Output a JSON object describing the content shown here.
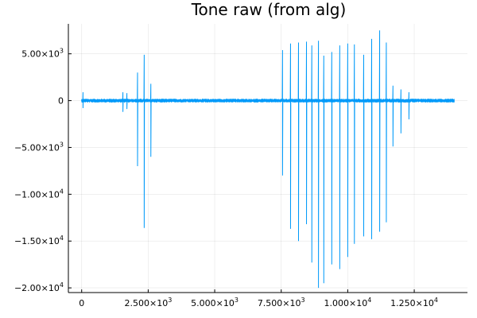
{
  "chart_data": {
    "type": "line",
    "title": "Tone raw (from alg)",
    "xlabel": "",
    "ylabel": "",
    "xlim": [
      -500,
      14500
    ],
    "ylim": [
      -20500,
      8200
    ],
    "grid": true,
    "legend": "none",
    "line_color": "#009af9",
    "x_ticks": [
      {
        "value": 0,
        "mantissa": "0",
        "exp": ""
      },
      {
        "value": 2500,
        "mantissa": "2.500×10",
        "exp": "3"
      },
      {
        "value": 5000,
        "mantissa": "5.000×10",
        "exp": "3"
      },
      {
        "value": 7500,
        "mantissa": "7.500×10",
        "exp": "3"
      },
      {
        "value": 10000,
        "mantissa": "1.000×10",
        "exp": "4"
      },
      {
        "value": 12500,
        "mantissa": "1.250×10",
        "exp": "4"
      }
    ],
    "y_ticks": [
      {
        "value": 5000,
        "mantissa": "5.00×10",
        "exp": "3"
      },
      {
        "value": 0,
        "mantissa": "0",
        "exp": ""
      },
      {
        "value": -5000,
        "mantissa": "−5.00×10",
        "exp": "3"
      },
      {
        "value": -10000,
        "mantissa": "−1.00×10",
        "exp": "4"
      },
      {
        "value": -15000,
        "mantissa": "−1.50×10",
        "exp": "4"
      },
      {
        "value": -20000,
        "mantissa": "−2.00×10",
        "exp": "4"
      }
    ],
    "series": [
      {
        "x_range": [
          0,
          14000
        ],
        "baseline_amplitude": 200,
        "spikes": [
          {
            "x": 50,
            "high": 900,
            "low": -800
          },
          {
            "x": 1550,
            "high": 900,
            "low": -1200
          },
          {
            "x": 1700,
            "high": 800,
            "low": -900
          },
          {
            "x": 2100,
            "high": 3000,
            "low": -7000
          },
          {
            "x": 2350,
            "high": 4900,
            "low": -13600
          },
          {
            "x": 2600,
            "high": 1800,
            "low": -6000
          },
          {
            "x": 7550,
            "high": 5400,
            "low": -8000
          },
          {
            "x": 7850,
            "high": 6100,
            "low": -13700
          },
          {
            "x": 8150,
            "high": 6200,
            "low": -15000
          },
          {
            "x": 8450,
            "high": 6300,
            "low": -13200
          },
          {
            "x": 8650,
            "high": 5900,
            "low": -17300
          },
          {
            "x": 8900,
            "high": 6400,
            "low": -20000
          },
          {
            "x": 9100,
            "high": 4800,
            "low": -19500
          },
          {
            "x": 9400,
            "high": 5200,
            "low": -17500
          },
          {
            "x": 9700,
            "high": 5900,
            "low": -18000
          },
          {
            "x": 10000,
            "high": 6100,
            "low": -16700
          },
          {
            "x": 10250,
            "high": 6000,
            "low": -15300
          },
          {
            "x": 10600,
            "high": 4900,
            "low": -14500
          },
          {
            "x": 10900,
            "high": 6600,
            "low": -14800
          },
          {
            "x": 11200,
            "high": 7500,
            "low": -14000
          },
          {
            "x": 11450,
            "high": 6200,
            "low": -13000
          },
          {
            "x": 11700,
            "high": 1600,
            "low": -4900
          },
          {
            "x": 12000,
            "high": 1200,
            "low": -3500
          },
          {
            "x": 12300,
            "high": 900,
            "low": -2000
          }
        ]
      }
    ]
  }
}
